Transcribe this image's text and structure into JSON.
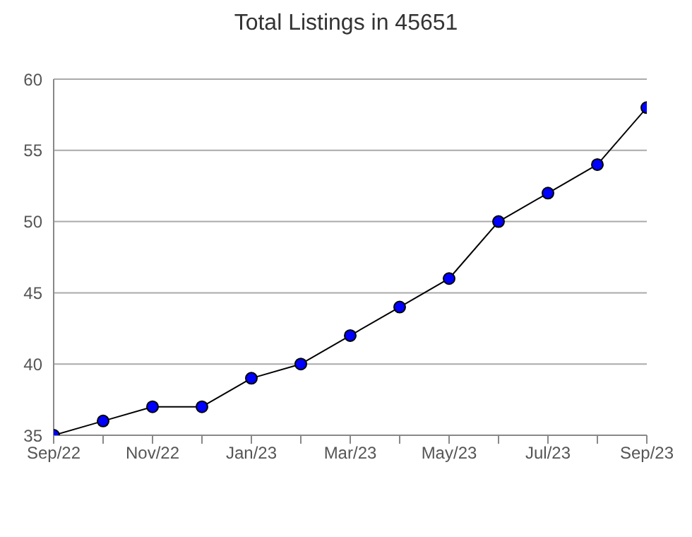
{
  "chart_data": {
    "type": "line",
    "title": "Total Listings in 45651",
    "categories": [
      "Sep/22",
      null,
      "Nov/22",
      null,
      "Jan/23",
      null,
      "Mar/23",
      null,
      "May/23",
      null,
      "Jul/23",
      null,
      "Sep/23"
    ],
    "series": [
      {
        "color": "#0000ff",
        "values": [
          35,
          36,
          37,
          37,
          39,
          40,
          42,
          44,
          46,
          50,
          52,
          54,
          58
        ]
      }
    ],
    "ylim": [
      35,
      60
    ],
    "yticks": [
      35,
      40,
      45,
      50,
      55,
      60
    ],
    "grid": "y",
    "marker": "circle",
    "line_style": "solid"
  }
}
